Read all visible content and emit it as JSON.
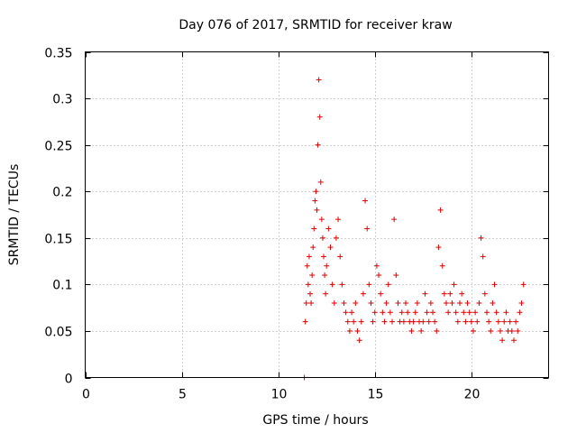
{
  "chart_data": {
    "type": "scatter",
    "title": "Day 076 of 2017, SRMTID for receiver kraw",
    "xlabel": "GPS time / hours",
    "ylabel": "SRMTID / TECUs",
    "xlim": [
      0,
      24
    ],
    "ylim": [
      0,
      0.35
    ],
    "xticks": [
      0,
      5,
      10,
      15,
      20
    ],
    "xtick_labels": [
      "0",
      "5",
      "10",
      "15",
      "20"
    ],
    "yticks": [
      0,
      0.05,
      0.1,
      0.15,
      0.2,
      0.25,
      0.3,
      0.35
    ],
    "ytick_labels": [
      "0",
      "0.05",
      "0.1",
      "0.15",
      "0.2",
      "0.25",
      "0.3",
      "0.35"
    ],
    "grid": true,
    "marker": "+",
    "color": "#e00000",
    "series": [
      {
        "name": "SRMTID",
        "x": [
          11.35,
          11.4,
          11.45,
          11.5,
          11.55,
          11.6,
          11.65,
          11.7,
          11.75,
          11.8,
          11.85,
          11.9,
          11.95,
          12.0,
          12.05,
          12.1,
          12.15,
          12.2,
          12.25,
          12.3,
          12.35,
          12.4,
          12.45,
          12.5,
          12.6,
          12.7,
          12.8,
          12.9,
          13.0,
          13.1,
          13.2,
          13.3,
          13.4,
          13.5,
          13.6,
          13.7,
          13.8,
          13.9,
          14.0,
          14.1,
          14.2,
          14.3,
          14.4,
          14.5,
          14.6,
          14.7,
          14.8,
          14.9,
          15.0,
          15.1,
          15.2,
          15.3,
          15.4,
          15.5,
          15.6,
          15.7,
          15.8,
          15.9,
          16.0,
          16.1,
          16.2,
          16.3,
          16.4,
          16.5,
          16.6,
          16.7,
          16.8,
          16.9,
          17.0,
          17.1,
          17.2,
          17.3,
          17.4,
          17.5,
          17.6,
          17.7,
          17.8,
          17.9,
          18.0,
          18.1,
          18.2,
          18.3,
          18.4,
          18.5,
          18.6,
          18.7,
          18.8,
          18.9,
          19.0,
          19.1,
          19.2,
          19.3,
          19.4,
          19.5,
          19.6,
          19.7,
          19.8,
          19.9,
          20.0,
          20.1,
          20.2,
          20.3,
          20.4,
          20.5,
          20.6,
          20.7,
          20.8,
          20.9,
          21.0,
          21.1,
          21.2,
          21.3,
          21.4,
          21.5,
          21.6,
          21.7,
          21.8,
          21.9,
          22.0,
          22.1,
          22.2,
          22.3,
          22.4,
          22.5,
          22.6,
          22.7
        ],
        "y": [
          0.0,
          0.06,
          0.08,
          0.12,
          0.1,
          0.13,
          0.09,
          0.08,
          0.11,
          0.14,
          0.16,
          0.19,
          0.2,
          0.18,
          0.25,
          0.32,
          0.28,
          0.21,
          0.17,
          0.15,
          0.13,
          0.11,
          0.09,
          0.12,
          0.16,
          0.14,
          0.1,
          0.08,
          0.15,
          0.17,
          0.13,
          0.1,
          0.08,
          0.07,
          0.06,
          0.05,
          0.07,
          0.06,
          0.08,
          0.05,
          0.04,
          0.06,
          0.09,
          0.19,
          0.16,
          0.1,
          0.08,
          0.06,
          0.07,
          0.12,
          0.11,
          0.09,
          0.07,
          0.06,
          0.08,
          0.1,
          0.07,
          0.06,
          0.17,
          0.11,
          0.08,
          0.06,
          0.07,
          0.06,
          0.08,
          0.07,
          0.06,
          0.05,
          0.06,
          0.07,
          0.08,
          0.06,
          0.05,
          0.06,
          0.09,
          0.07,
          0.06,
          0.08,
          0.07,
          0.06,
          0.05,
          0.14,
          0.18,
          0.12,
          0.09,
          0.08,
          0.07,
          0.09,
          0.08,
          0.1,
          0.07,
          0.06,
          0.08,
          0.09,
          0.07,
          0.06,
          0.08,
          0.07,
          0.06,
          0.05,
          0.07,
          0.06,
          0.08,
          0.15,
          0.13,
          0.09,
          0.07,
          0.06,
          0.05,
          0.08,
          0.1,
          0.07,
          0.06,
          0.05,
          0.04,
          0.06,
          0.07,
          0.05,
          0.06,
          0.05,
          0.04,
          0.06,
          0.05,
          0.07,
          0.08,
          0.1
        ]
      }
    ]
  }
}
